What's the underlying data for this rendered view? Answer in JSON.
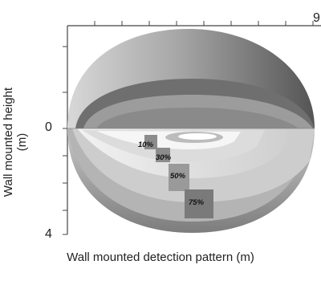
{
  "figure": {
    "x_axis_label": "Wall mounted detection pattern (m)",
    "y_axis_label": "Wall mounted height (m)",
    "y_tick_labels": [
      "0",
      "4"
    ],
    "x_tick_partial": "9",
    "zone_labels": [
      "10%",
      "30%",
      "50%",
      "75%"
    ],
    "colors": {
      "outer_shell": "#9a9a9a",
      "shell_dark": "#6f6f6f",
      "inner_light": "#e6e6e6",
      "inner_mid": "#c4c4c4",
      "axis": "#444444"
    }
  }
}
